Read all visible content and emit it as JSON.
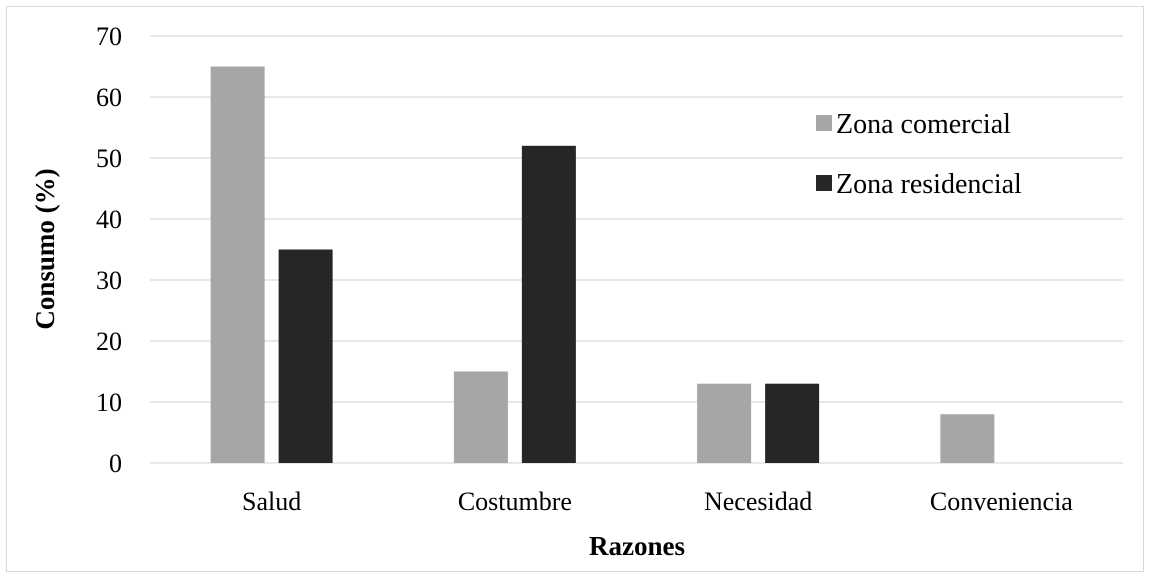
{
  "chart_data": {
    "type": "bar",
    "title": "",
    "xlabel": "Razones",
    "ylabel": "Consumo (%)",
    "categories": [
      "Salud",
      "Costumbre",
      "Necesidad",
      "Conveniencia"
    ],
    "series": [
      {
        "name": "Zona comercial",
        "values": [
          65,
          15,
          13,
          8
        ],
        "color": "#a6a6a6"
      },
      {
        "name": "Zona residencial",
        "values": [
          35,
          52,
          13,
          0
        ],
        "color": "#262626"
      }
    ],
    "ylim": [
      0,
      70
    ],
    "yticks": [
      0,
      10,
      20,
      30,
      40,
      50,
      60,
      70
    ],
    "grid": true,
    "legend_position": "top-right",
    "gridline_color": "#d9d9d9"
  }
}
